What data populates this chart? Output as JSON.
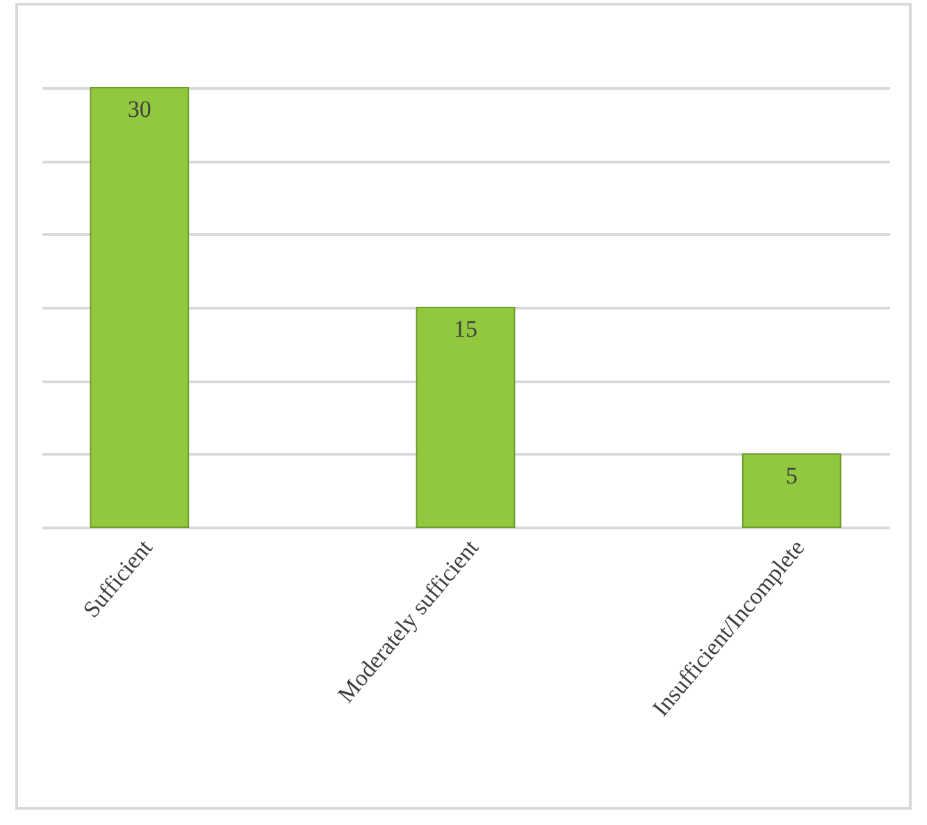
{
  "chart_data": {
    "type": "bar",
    "categories": [
      "Sufficient",
      "Moderately sufficient",
      "Insufficient/Incomplete"
    ],
    "values": [
      30,
      15,
      5
    ],
    "color": "#92c83e",
    "ylim": [
      0,
      30
    ],
    "yticks": [
      {
        "value": 0,
        "label": null
      },
      {
        "value": 5,
        "label": null
      },
      {
        "value": 10,
        "label": null
      },
      {
        "value": 15,
        "label": null
      },
      {
        "value": 20,
        "label": null
      },
      {
        "value": 25,
        "label": null
      },
      {
        "value": 30,
        "label": null
      }
    ],
    "grid": "y",
    "tick_labels": "x",
    "data_labels": true
  }
}
